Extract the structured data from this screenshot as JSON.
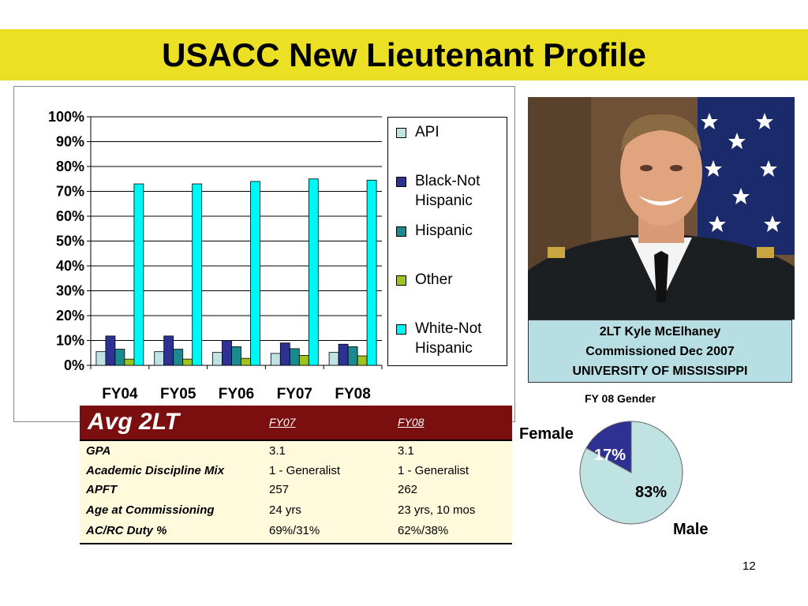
{
  "title": "USACC New Lieutenant Profile",
  "chart_data": [
    {
      "type": "bar",
      "categories": [
        "FY04",
        "FY05",
        "FY06",
        "FY07",
        "FY08"
      ],
      "series": [
        {
          "name": "API",
          "color": "#bfe3e3",
          "values": [
            5.5,
            5.5,
            5.2,
            4.8,
            5.2
          ]
        },
        {
          "name": "Black-Not Hispanic",
          "color": "#2e3192",
          "values": [
            11.8,
            11.8,
            10.0,
            9.0,
            8.5
          ]
        },
        {
          "name": "Hispanic",
          "color": "#1b8a8c",
          "values": [
            6.5,
            6.5,
            7.5,
            6.7,
            7.5
          ]
        },
        {
          "name": "Other",
          "color": "#9dc420",
          "values": [
            2.5,
            2.5,
            2.8,
            4.0,
            3.8
          ]
        },
        {
          "name": "White-Not Hispanic",
          "color": "#00f5f5",
          "values": [
            73,
            73,
            74,
            75,
            74.5
          ]
        }
      ],
      "yticks": [
        "0%",
        "10%",
        "20%",
        "30%",
        "40%",
        "50%",
        "60%",
        "70%",
        "80%",
        "90%",
        "100%"
      ],
      "ylim": [
        0,
        100
      ],
      "legend": "right",
      "grid": true
    },
    {
      "type": "pie",
      "title": "FY 08 Gender",
      "labels": [
        "Female",
        "Male"
      ],
      "values": [
        17,
        83
      ],
      "value_labels": [
        "17%",
        "83%"
      ],
      "colors": [
        "#2e3192",
        "#bfe3e3"
      ]
    }
  ],
  "legend_items": [
    {
      "line1": "API",
      "line2": "",
      "color": "#bfe3e3"
    },
    {
      "line1": "Black-Not",
      "line2": "Hispanic",
      "color": "#2e3192"
    },
    {
      "line1": "Hispanic",
      "line2": "",
      "color": "#1b8a8c"
    },
    {
      "line1": "Other",
      "line2": "",
      "color": "#9dc420"
    },
    {
      "line1": "White-Not",
      "line2": "Hispanic",
      "color": "#00f5f5"
    }
  ],
  "photo_caption": {
    "line1": "2LT Kyle McElhaney",
    "line2": "Commissioned Dec 2007",
    "line3": "UNIVERSITY OF MISSISSIPPI"
  },
  "table": {
    "title": "Avg 2LT",
    "columns": [
      "FY07",
      "FY08"
    ],
    "rows": [
      {
        "label": "GPA",
        "fy07": "3.1",
        "fy08": "3.1"
      },
      {
        "label": "Academic Discipline Mix",
        "fy07": "1 - Generalist",
        "fy08": "1 - Generalist"
      },
      {
        "label": "APFT",
        "fy07": "257",
        "fy08": "262"
      },
      {
        "label": "Age at Commissioning",
        "fy07": "24 yrs",
        "fy08": "23 yrs, 10 mos"
      },
      {
        "label": "AC/RC Duty %",
        "fy07": "69%/31%",
        "fy08": "62%/38%"
      }
    ]
  },
  "page_number": "12"
}
